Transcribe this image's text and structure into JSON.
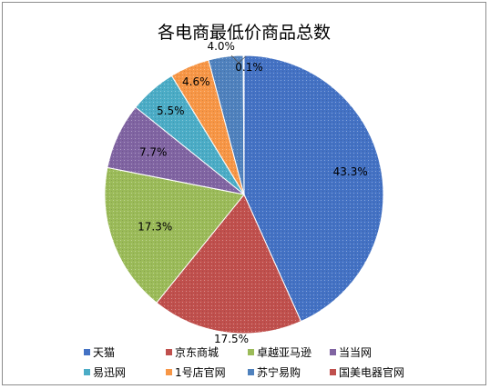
{
  "chart_data": {
    "type": "pie",
    "title": "各电商最低价商品总数",
    "categories": [
      "天猫",
      "京东商城",
      "卓越亚马逊",
      "当当网",
      "易迅网",
      "1号店官网",
      "苏宁易购",
      "国美电器官网"
    ],
    "values": [
      43.3,
      17.5,
      17.3,
      7.7,
      5.5,
      4.6,
      4.0,
      0.1
    ],
    "data_labels": [
      "43.3%",
      "17.5%",
      "17.3%",
      "7.7%",
      "5.5%",
      "4.6%",
      "4.0%",
      "0.1%"
    ],
    "colors": [
      "#4472C4",
      "#C0504D",
      "#9BBB59",
      "#8064A2",
      "#4BACC6",
      "#F79646",
      "#4F81BD",
      "#C0504D"
    ],
    "legend_position": "bottom"
  }
}
